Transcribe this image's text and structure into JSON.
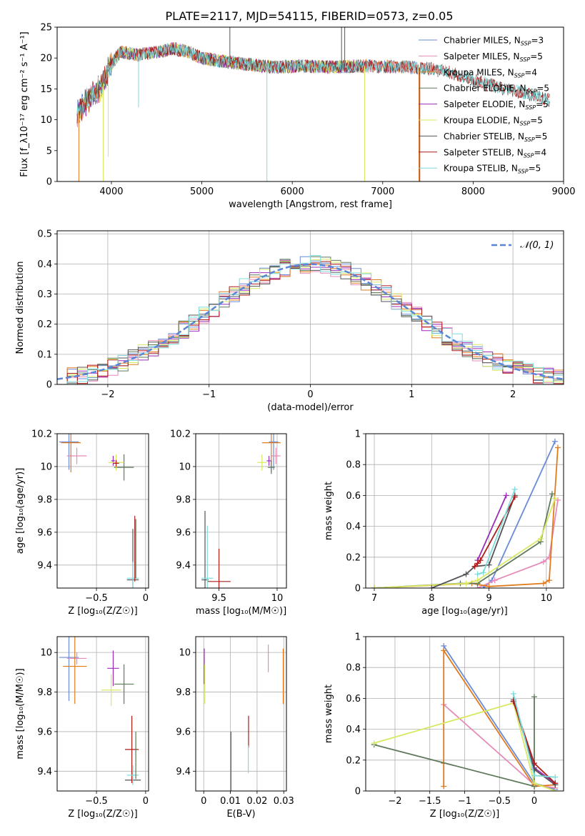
{
  "figure": {
    "title": "PLATE=2117, MJD=54115, FIBERID=0573, z=0.05"
  },
  "colors": {
    "chabrier_miles": "#6a8bd8",
    "salpeter_miles": "#e58cb8",
    "kroupa_miles": "#e07b1d",
    "chabrier_elodie": "#5e7a5a",
    "salpeter_elodie": "#9a2db6",
    "kroupa_elodie": "#d8e860",
    "chabrier_stelib": "#555555",
    "salpeter_stelib": "#b01b1b",
    "kroupa_stelib": "#7fdcdc",
    "normal_curve": "#5b86d6"
  },
  "chart_data": [
    {
      "id": "spectrum",
      "type": "line",
      "title": "PLATE=2117, MJD=54115, FIBERID=0573, z=0.05",
      "xlabel": "wavelength [Angstrom, rest frame]",
      "ylabel": "Flux [f_λ10⁻¹⁷ erg cm⁻² s⁻¹ A⁻¹]",
      "xlim": [
        3400,
        9000
      ],
      "ylim": [
        0,
        25
      ],
      "xticks": [
        4000,
        5000,
        6000,
        7000,
        8000,
        9000
      ],
      "yticks": [
        0,
        5,
        10,
        15,
        20,
        25
      ],
      "legend_position": "top-right",
      "spectrum_shape": [
        [
          3620,
          11
        ],
        [
          3700,
          12.5
        ],
        [
          3800,
          14
        ],
        [
          3900,
          15.5
        ],
        [
          4000,
          19
        ],
        [
          4100,
          21
        ],
        [
          4300,
          20.5
        ],
        [
          4500,
          21
        ],
        [
          4700,
          21.5
        ],
        [
          4850,
          21
        ],
        [
          5000,
          20
        ],
        [
          5200,
          19.5
        ],
        [
          5500,
          19
        ],
        [
          5800,
          18.5
        ],
        [
          6100,
          18.7
        ],
        [
          6400,
          18.5
        ],
        [
          6700,
          18.7
        ],
        [
          7000,
          18.6
        ],
        [
          7300,
          18.5
        ],
        [
          7500,
          18.3
        ],
        [
          7700,
          17.8
        ],
        [
          7900,
          17
        ],
        [
          8100,
          16
        ],
        [
          8300,
          15.2
        ],
        [
          8500,
          14.5
        ],
        [
          8700,
          13.8
        ],
        [
          8850,
          13.2
        ]
      ],
      "series": [
        {
          "name": "Chabrier MILES, N_SSP=3",
          "color_key": "chabrier_miles"
        },
        {
          "name": "Salpeter MILES, N_SSP=5",
          "color_key": "salpeter_miles"
        },
        {
          "name": "Kroupa MILES, N_SSP=4",
          "color_key": "kroupa_miles"
        },
        {
          "name": "Chabrier ELODIE, N_SSP=5",
          "color_key": "chabrier_elodie"
        },
        {
          "name": "Salpeter ELODIE, N_SSP=5",
          "color_key": "salpeter_elodie"
        },
        {
          "name": "Kroupa ELODIE, N_SSP=5",
          "color_key": "kroupa_elodie"
        },
        {
          "name": "Chabrier STELIB, N_SSP=5",
          "color_key": "chabrier_stelib"
        },
        {
          "name": "Salpeter STELIB, N_SSP=4",
          "color_key": "salpeter_stelib"
        },
        {
          "name": "Kroupa STELIB, N_SSP=5",
          "color_key": "kroupa_stelib"
        }
      ]
    },
    {
      "id": "residual_hist",
      "type": "bar",
      "xlabel": "(data-model)/error",
      "ylabel": "Normed distribution",
      "xlim": [
        -2.5,
        2.5
      ],
      "ylim": [
        0,
        0.51
      ],
      "xticks": [
        -2,
        -1,
        0,
        1,
        2
      ],
      "yticks": [
        0.0,
        0.1,
        0.2,
        0.3,
        0.4,
        0.5
      ],
      "bin_width": 0.1,
      "curve_label": "𝒩(0, 1)",
      "legend_position": "top-right"
    },
    {
      "id": "age_vs_Z",
      "type": "scatter",
      "xlabel": "Z [log₁₀(Z/Z☉)]",
      "ylabel": "age  [log₁₀(age/yr)]",
      "xlim": [
        -0.9,
        0.03
      ],
      "ylim": [
        9.26,
        10.2
      ],
      "xticks": [
        -0.5,
        0.0
      ],
      "yticks": [
        9.4,
        9.6,
        9.8,
        10.0,
        10.2
      ],
      "points": [
        {
          "color_key": "chabrier_miles",
          "x": -0.78,
          "y": 10.15,
          "xerr": 0.1,
          "yerr": 0.17
        },
        {
          "color_key": "salpeter_miles",
          "x": -0.7,
          "y": 10.065,
          "xerr": 0.1,
          "yerr": 0.05
        },
        {
          "color_key": "kroupa_miles",
          "x": -0.76,
          "y": 10.145,
          "xerr": 0.1,
          "yerr": 0.18
        },
        {
          "color_key": "chabrier_elodie",
          "x": -0.22,
          "y": 9.995,
          "xerr": 0.1,
          "yerr": 0.08
        },
        {
          "color_key": "salpeter_elodie",
          "x": -0.33,
          "y": 10.035,
          "xerr": 0.02,
          "yerr": 0.03
        },
        {
          "color_key": "kroupa_elodie",
          "x": -0.3,
          "y": 10.025,
          "xerr": 0.08,
          "yerr": 0.05
        },
        {
          "color_key": "chabrier_stelib",
          "x": -0.13,
          "y": 9.31,
          "xerr": 0.06,
          "yerr": 0.31
        },
        {
          "color_key": "salpeter_stelib",
          "x": -0.3,
          "y": 10.02,
          "xerr": 0.03,
          "yerr": 0.02
        },
        {
          "color_key": "kroupa_stelib",
          "x": -0.13,
          "y": 9.32,
          "xerr": 0.06,
          "yerr": 0.1
        },
        {
          "color_key": "salpeter_stelib",
          "x": -0.11,
          "y": 9.5,
          "xerr": 0.0,
          "yerr": 0.2
        },
        {
          "color_key": "chabrier_elodie",
          "x": -0.1,
          "y": 9.5,
          "xerr": 0.0,
          "yerr": 0.18
        }
      ]
    },
    {
      "id": "age_vs_mass",
      "type": "scatter",
      "xlabel": "mass [log₁₀(M/M☉)]",
      "xlim": [
        9.3,
        10.08
      ],
      "ylim": [
        9.26,
        10.2
      ],
      "xticks": [
        9.5,
        10.0
      ],
      "yticks": [
        9.4,
        9.6,
        9.8,
        10.0,
        10.2
      ],
      "points": [
        {
          "color_key": "chabrier_miles",
          "x": 9.97,
          "y": 10.15,
          "xerr": 0.04,
          "yerr": 0.17
        },
        {
          "color_key": "salpeter_miles",
          "x": 9.99,
          "y": 10.065,
          "xerr": 0.04,
          "yerr": 0.05
        },
        {
          "color_key": "kroupa_miles",
          "x": 9.95,
          "y": 10.145,
          "xerr": 0.08,
          "yerr": 0.18
        },
        {
          "color_key": "chabrier_elodie",
          "x": 9.95,
          "y": 9.995,
          "xerr": 0.03,
          "yerr": 0.04
        },
        {
          "color_key": "salpeter_elodie",
          "x": 9.93,
          "y": 10.035,
          "xerr": 0.02,
          "yerr": 0.03
        },
        {
          "color_key": "kroupa_elodie",
          "x": 9.87,
          "y": 10.025,
          "xerr": 0.04,
          "yerr": 0.05
        },
        {
          "color_key": "chabrier_stelib",
          "x": 9.38,
          "y": 9.31,
          "xerr": 0.03,
          "yerr": 0.42
        },
        {
          "color_key": "salpeter_stelib",
          "x": 9.5,
          "y": 9.3,
          "xerr": 0.1,
          "yerr": 0.2
        },
        {
          "color_key": "kroupa_stelib",
          "x": 9.4,
          "y": 9.32,
          "xerr": 0.05,
          "yerr": 0.32
        }
      ]
    },
    {
      "id": "weight_vs_age",
      "type": "line",
      "xlabel": "age  [log₁₀(age/yr)]",
      "ylabel": "mass weight",
      "xlim": [
        6.85,
        10.3
      ],
      "ylim": [
        0,
        1.0
      ],
      "xticks": [
        7,
        8,
        9,
        10
      ],
      "yticks": [
        0.0,
        0.2,
        0.4,
        0.6,
        0.8,
        1.0
      ],
      "series": [
        {
          "color_key": "chabrier_miles",
          "x": [
            8.9,
            9.05,
            10.15
          ],
          "y": [
            0.0,
            0.05,
            0.95
          ]
        },
        {
          "color_key": "salpeter_miles",
          "x": [
            8.8,
            9.1,
            9.95,
            10.05,
            10.2
          ],
          "y": [
            0.0,
            0.05,
            0.17,
            0.2,
            0.57
          ]
        },
        {
          "color_key": "kroupa_miles",
          "x": [
            7.0,
            8.7,
            9.0,
            9.95,
            10.05,
            10.2
          ],
          "y": [
            0.0,
            0.03,
            0.01,
            0.03,
            0.05,
            0.91
          ]
        },
        {
          "color_key": "chabrier_elodie",
          "x": [
            7.0,
            8.5,
            8.8,
            9.9,
            10.1
          ],
          "y": [
            0.0,
            0.03,
            0.03,
            0.3,
            0.61
          ]
        },
        {
          "color_key": "salpeter_elodie",
          "x": [
            8.8,
            9.3
          ],
          "y": [
            0.18,
            0.6
          ]
        },
        {
          "color_key": "kroupa_elodie",
          "x": [
            7.0,
            8.6,
            8.8,
            9.9,
            10.15
          ],
          "y": [
            0.0,
            0.03,
            0.05,
            0.32,
            0.58
          ]
        },
        {
          "color_key": "chabrier_stelib",
          "x": [
            8.0,
            8.6,
            8.75,
            9.0,
            9.45
          ],
          "y": [
            0.0,
            0.09,
            0.14,
            0.15,
            0.6
          ]
        },
        {
          "color_key": "salpeter_stelib",
          "x": [
            8.75,
            8.8,
            8.85,
            9.45
          ],
          "y": [
            0.14,
            0.16,
            0.18,
            0.59
          ]
        },
        {
          "color_key": "kroupa_stelib",
          "x": [
            8.8,
            8.9,
            9.45
          ],
          "y": [
            0.09,
            0.1,
            0.64
          ]
        }
      ]
    },
    {
      "id": "mass_vs_Z",
      "type": "scatter",
      "xlabel": "Z [log₁₀(Z/Z☉)]",
      "ylabel": "mass [log₁₀(M/M☉)]",
      "xlim": [
        -0.9,
        0.03
      ],
      "ylim": [
        9.3,
        10.08
      ],
      "xticks": [
        -0.5,
        0.0
      ],
      "yticks": [
        9.4,
        9.6,
        9.8,
        10.0
      ],
      "points": [
        {
          "color_key": "chabrier_miles",
          "x": -0.78,
          "y": 9.975,
          "xerr": 0.1,
          "yerr": 0.22
        },
        {
          "color_key": "salpeter_miles",
          "x": -0.7,
          "y": 9.97,
          "xerr": 0.1,
          "yerr": 0.03
        },
        {
          "color_key": "kroupa_miles",
          "x": -0.72,
          "y": 9.93,
          "xerr": 0.12,
          "yerr": 0.19
        },
        {
          "color_key": "chabrier_elodie",
          "x": -0.22,
          "y": 9.84,
          "xerr": 0.1,
          "yerr": 0.1
        },
        {
          "color_key": "salpeter_elodie",
          "x": -0.33,
          "y": 9.92,
          "xerr": 0.06,
          "yerr": 0.09
        },
        {
          "color_key": "kroupa_elodie",
          "x": -0.35,
          "y": 9.81,
          "xerr": 0.1,
          "yerr": 0.08
        },
        {
          "color_key": "chabrier_stelib",
          "x": -0.13,
          "y": 9.355,
          "xerr": 0.08,
          "yerr": 0.0
        },
        {
          "color_key": "salpeter_stelib",
          "x": -0.14,
          "y": 9.51,
          "xerr": 0.07,
          "yerr": 0.17
        },
        {
          "color_key": "kroupa_stelib",
          "x": -0.13,
          "y": 9.38,
          "xerr": 0.06,
          "yerr": 0.05
        },
        {
          "color_key": "chabrier_elodie",
          "x": -0.1,
          "y": 9.48,
          "xerr": 0.0,
          "yerr": 0.12
        }
      ]
    },
    {
      "id": "mass_vs_ebv",
      "type": "scatter",
      "xlabel": "E(B-V)",
      "xlim": [
        -0.003,
        0.031
      ],
      "ylim": [
        9.3,
        10.08
      ],
      "xticks": [
        0.0,
        0.01,
        0.02,
        0.03
      ],
      "yticks": [
        9.4,
        9.6,
        9.8,
        10.0
      ],
      "points": [
        {
          "color_key": "salpeter_elodie",
          "x": 0.0002,
          "y": 9.93,
          "xerr": 0,
          "yerr": 0.09
        },
        {
          "color_key": "kroupa_elodie",
          "x": 0.0004,
          "y": 9.84,
          "xerr": 0,
          "yerr": 0.1
        },
        {
          "color_key": "chabrier_stelib",
          "x": 0.0102,
          "y": 9.4,
          "xerr": 0,
          "yerr": 0.2
        },
        {
          "color_key": "salpeter_stelib",
          "x": 0.0168,
          "y": 9.6,
          "xerr": 0,
          "yerr": 0.08
        },
        {
          "color_key": "kroupa_stelib",
          "x": 0.0167,
          "y": 9.46,
          "xerr": 0,
          "yerr": 0.07
        },
        {
          "color_key": "salpeter_miles",
          "x": 0.0242,
          "y": 9.97,
          "xerr": 0,
          "yerr": 0.07
        },
        {
          "color_key": "kroupa_miles",
          "x": 0.0298,
          "y": 9.88,
          "xerr": 0,
          "yerr": 0.14
        }
      ]
    },
    {
      "id": "weight_vs_Z",
      "type": "line",
      "xlabel": "Z [log₁₀(Z/Z☉)]",
      "ylabel": "mass weight",
      "xlim": [
        -2.42,
        0.42
      ],
      "ylim": [
        0,
        1.0
      ],
      "xticks": [
        -2.0,
        -1.5,
        -1.0,
        -0.5,
        0.0
      ],
      "yticks": [
        0.0,
        0.2,
        0.4,
        0.6,
        0.8,
        1.0
      ],
      "series": [
        {
          "color_key": "chabrier_miles",
          "x": [
            -1.3,
            0.0,
            0.3
          ],
          "y": [
            0.94,
            0.05,
            0.01
          ]
        },
        {
          "color_key": "salpeter_miles",
          "x": [
            -1.3,
            0.0,
            0.3
          ],
          "y": [
            0.56,
            0.04,
            0.02
          ]
        },
        {
          "color_key": "kroupa_miles",
          "x": [
            -1.3,
            -1.3,
            -1.3,
            0.0,
            0.3
          ],
          "y": [
            0.03,
            0.18,
            0.91,
            0.03,
            0.04
          ]
        },
        {
          "color_key": "chabrier_elodie",
          "x": [
            -2.3,
            0.0,
            0.0
          ],
          "y": [
            0.3,
            0.03,
            0.61
          ]
        },
        {
          "color_key": "salpeter_elodie",
          "x": [
            -0.3,
            0.0,
            0.3
          ],
          "y": [
            0.58,
            0.15,
            0.05
          ]
        },
        {
          "color_key": "kroupa_elodie",
          "x": [
            -2.3,
            -0.3,
            0.0,
            0.3
          ],
          "y": [
            0.31,
            0.57,
            0.05,
            0.0
          ]
        },
        {
          "color_key": "chabrier_stelib",
          "x": [
            -0.3,
            0.0,
            0.3
          ],
          "y": [
            0.59,
            0.14,
            0.04
          ]
        },
        {
          "color_key": "salpeter_stelib",
          "x": [
            -0.3,
            0.0,
            0.3
          ],
          "y": [
            0.58,
            0.18,
            0.05
          ]
        },
        {
          "color_key": "kroupa_stelib",
          "x": [
            -0.3,
            0.0,
            0.3
          ],
          "y": [
            0.63,
            0.1,
            0.09
          ]
        }
      ]
    }
  ]
}
